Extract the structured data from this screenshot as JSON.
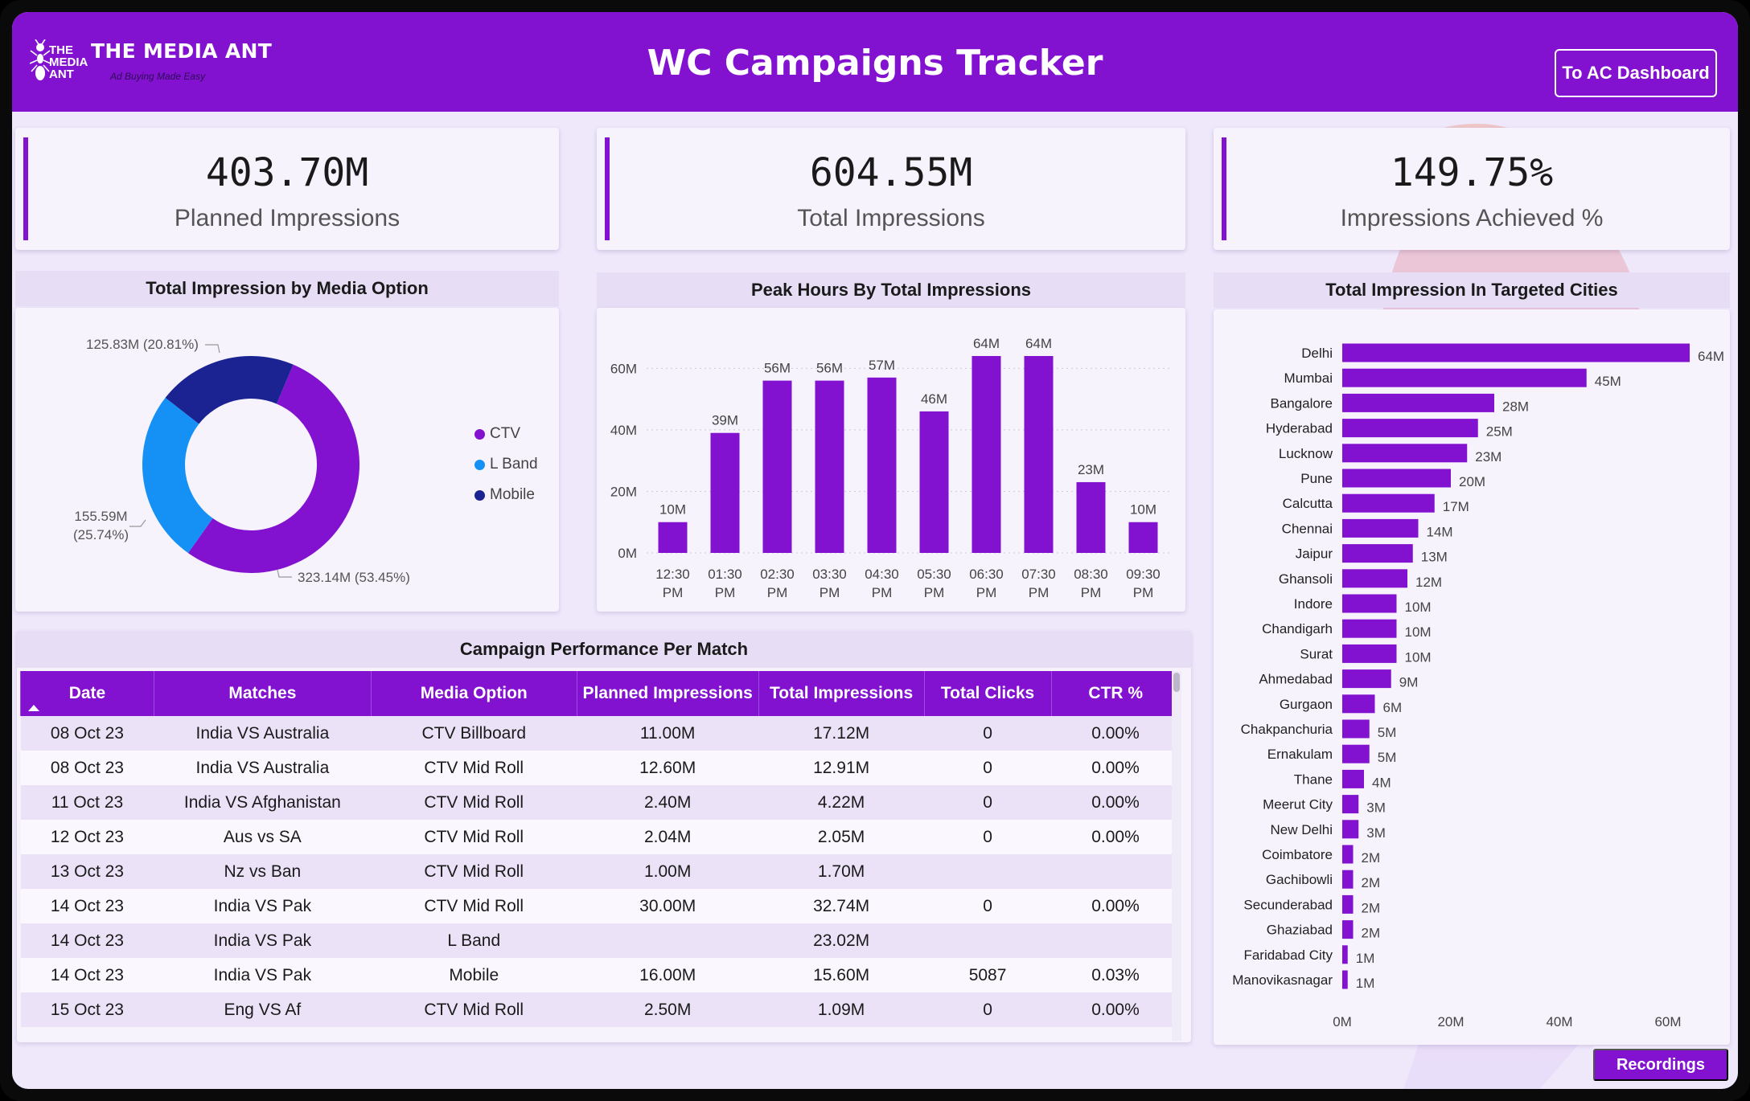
{
  "header": {
    "brand_short": [
      "THE",
      "MEDIA",
      "ANT"
    ],
    "brand_name": "THE MEDIA ANT",
    "tagline": "Ad Buying Made Easy",
    "title": "WC Campaigns Tracker",
    "ac_dashboard_label": "To AC Dashboard"
  },
  "kpis": [
    {
      "value": "403.70M",
      "label": "Planned Impressions"
    },
    {
      "value": "604.55M",
      "label": "Total Impressions"
    },
    {
      "value": "149.75%",
      "label": "Impressions Achieved %"
    }
  ],
  "media_option": {
    "title": "Total Impression by Media Option",
    "legend": [
      {
        "label": "CTV",
        "color": "#8312d0"
      },
      {
        "label": "L Band",
        "color": "#1591f5"
      },
      {
        "label": "Mobile",
        "color": "#1a2391"
      }
    ],
    "labels": {
      "ctv": "323.14M (53.45%)",
      "lband_value": "155.59M",
      "lband_pct": "(25.74%)",
      "mobile": "125.83M (20.81%)"
    }
  },
  "peak_hours": {
    "title": "Peak Hours By Total Impressions"
  },
  "cities": {
    "title": "Total Impression In Targeted Cities"
  },
  "chart_data": [
    {
      "type": "pie",
      "title": "Total Impression by Media Option",
      "categories": [
        "CTV",
        "L Band",
        "Mobile"
      ],
      "values": [
        323.14,
        155.59,
        125.83
      ],
      "percentages": [
        53.45,
        25.74,
        20.81
      ],
      "unit": "M",
      "colors": [
        "#8312d0",
        "#1591f5",
        "#1a2391"
      ],
      "legend": "right"
    },
    {
      "type": "bar",
      "title": "Peak Hours By Total Impressions",
      "categories": [
        "12:30 PM",
        "01:30 PM",
        "02:30 PM",
        "03:30 PM",
        "04:30 PM",
        "05:30 PM",
        "06:30 PM",
        "07:30 PM",
        "08:30 PM",
        "09:30 PM"
      ],
      "values": [
        10,
        39,
        56,
        56,
        57,
        46,
        64,
        64,
        23,
        10
      ],
      "data_labels": [
        "10M",
        "39M",
        "56M",
        "56M",
        "57M",
        "46M",
        "64M",
        "64M",
        "23M",
        "10M"
      ],
      "yticks": [
        "0M",
        "20M",
        "40M",
        "60M"
      ],
      "ytick_values": [
        0,
        20,
        40,
        60
      ],
      "ylim": [
        0,
        64
      ],
      "color": "#8312d0",
      "grid": true
    },
    {
      "type": "bar",
      "orientation": "horizontal",
      "title": "Total Impression In Targeted Cities",
      "categories": [
        "Delhi",
        "Mumbai",
        "Bangalore",
        "Hyderabad",
        "Lucknow",
        "Pune",
        "Calcutta",
        "Chennai",
        "Jaipur",
        "Ghansoli",
        "Indore",
        "Chandigarh",
        "Surat",
        "Ahmedabad",
        "Gurgaon",
        "Chakpanchuria",
        "Ernakulam",
        "Thane",
        "Meerut City",
        "New Delhi",
        "Coimbatore",
        "Gachibowli",
        "Secunderabad",
        "Ghaziabad",
        "Faridabad City",
        "Manovikasnagar"
      ],
      "values": [
        64,
        45,
        28,
        25,
        23,
        20,
        17,
        14,
        13,
        12,
        10,
        10,
        10,
        9,
        6,
        5,
        5,
        4,
        3,
        3,
        2,
        2,
        2,
        2,
        1,
        1
      ],
      "data_labels": [
        "64M",
        "45M",
        "28M",
        "25M",
        "23M",
        "20M",
        "17M",
        "14M",
        "13M",
        "12M",
        "10M",
        "10M",
        "10M",
        "9M",
        "6M",
        "5M",
        "5M",
        "4M",
        "3M",
        "3M",
        "2M",
        "2M",
        "2M",
        "2M",
        "1M",
        "1M"
      ],
      "xticks": [
        "0M",
        "20M",
        "40M",
        "60M"
      ],
      "xtick_values": [
        0,
        20,
        40,
        60
      ],
      "xlim": [
        0,
        64
      ],
      "color": "#8312d0"
    }
  ],
  "table": {
    "title": "Campaign Performance Per Match",
    "columns": [
      "Date",
      "Matches",
      "Media Option",
      "Planned Impressions",
      "Total Impressions",
      "Total Clicks",
      "CTR %"
    ],
    "rows": [
      [
        "08 Oct 23",
        "India VS Australia",
        "CTV Billboard",
        "11.00M",
        "17.12M",
        "0",
        "0.00%"
      ],
      [
        "08 Oct 23",
        "India VS Australia",
        "CTV Mid Roll",
        "12.60M",
        "12.91M",
        "0",
        "0.00%"
      ],
      [
        "11 Oct 23",
        "India VS Afghanistan",
        "CTV Mid Roll",
        "2.40M",
        "4.22M",
        "0",
        "0.00%"
      ],
      [
        "12 Oct 23",
        "Aus vs SA",
        "CTV Mid Roll",
        "2.04M",
        "2.05M",
        "0",
        "0.00%"
      ],
      [
        "13 Oct 23",
        "Nz vs Ban",
        "CTV Mid Roll",
        "1.00M",
        "1.70M",
        "",
        ""
      ],
      [
        "14 Oct 23",
        "India VS Pak",
        "CTV Mid Roll",
        "30.00M",
        "32.74M",
        "0",
        "0.00%"
      ],
      [
        "14 Oct 23",
        "India VS Pak",
        "L Band",
        "",
        "23.02M",
        "",
        ""
      ],
      [
        "14 Oct 23",
        "India VS Pak",
        "Mobile",
        "16.00M",
        "15.60M",
        "5087",
        "0.03%"
      ],
      [
        "15 Oct 23",
        "Eng VS Af",
        "CTV Mid Roll",
        "2.50M",
        "1.09M",
        "0",
        "0.00%"
      ]
    ]
  },
  "recordings_label": "Recordings"
}
